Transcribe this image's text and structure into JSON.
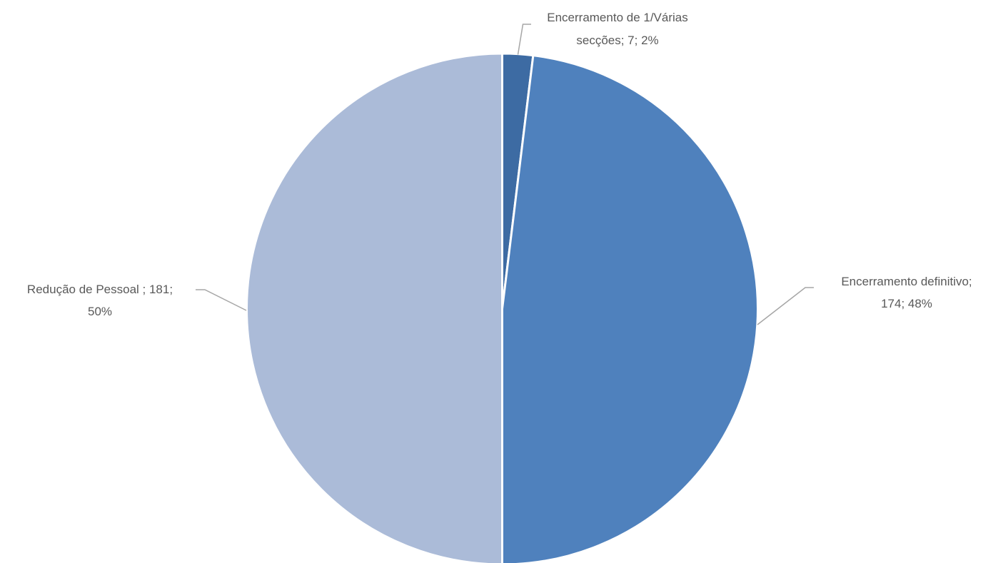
{
  "chart_data": {
    "type": "pie",
    "title": "",
    "slices": [
      {
        "name": "Encerramento de 1/Várias secções",
        "value": 7,
        "percent": 2,
        "color": "#3d6ba3",
        "label_lines": [
          "Encerramento de 1/Várias",
          "secções; 7; 2%"
        ]
      },
      {
        "name": "Encerramento definitivo",
        "value": 174,
        "percent": 48,
        "color": "#4f81bd",
        "label_lines": [
          "Encerramento definitivo;",
          "174; 48%"
        ]
      },
      {
        "name": "Redução de Pessoal",
        "value": 181,
        "percent": 50,
        "color": "#abbbd8",
        "label_lines": [
          "Redução de Pessoal ; 181;",
          "50%"
        ]
      }
    ],
    "start_angle_deg": 0,
    "direction": "clockwise",
    "legend": "none",
    "data_labels": "outside-with-leader-lines"
  }
}
